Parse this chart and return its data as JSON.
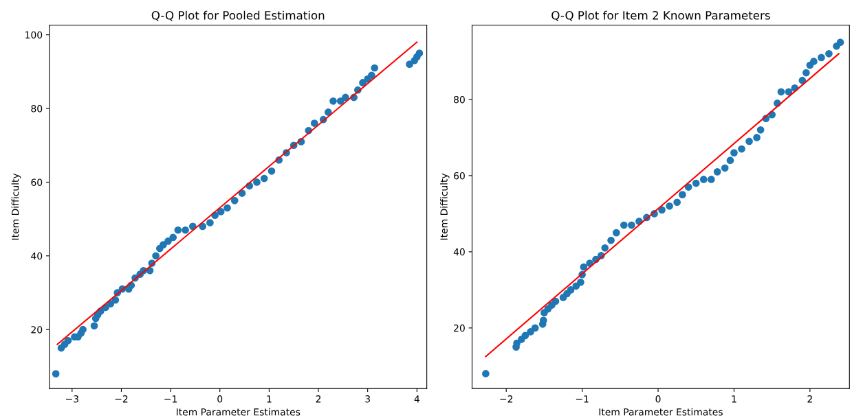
{
  "chart_data": [
    {
      "type": "scatter",
      "title": "Q-Q Plot for Pooled Estimation",
      "xlabel": "Item Parameter Estimates",
      "ylabel": "Item Difficulty",
      "xlim": [
        -3.46,
        4.2
      ],
      "ylim": [
        4.0,
        102.6
      ],
      "xticks": [
        {
          "value": -3,
          "label": "−3"
        },
        {
          "value": -2,
          "label": "−2"
        },
        {
          "value": -1,
          "label": "−1"
        },
        0,
        1,
        2,
        3,
        4
      ],
      "yticks": [
        20,
        40,
        60,
        80,
        100
      ],
      "series": [
        {
          "marker": "circle",
          "color": "#1f77b4",
          "x": [
            -3.33,
            -3.22,
            -3.15,
            -3.08,
            -2.95,
            -2.88,
            -2.82,
            -2.78,
            -2.55,
            -2.52,
            -2.48,
            -2.42,
            -2.32,
            -2.22,
            -2.12,
            -2.08,
            -1.98,
            -1.85,
            -1.8,
            -1.72,
            -1.62,
            -1.55,
            -1.42,
            -1.38,
            -1.3,
            -1.22,
            -1.15,
            -1.05,
            -0.95,
            -0.85,
            -0.7,
            -0.55,
            -0.35,
            -0.2,
            -0.1,
            0.02,
            0.15,
            0.3,
            0.45,
            0.6,
            0.75,
            0.9,
            1.05,
            1.2,
            1.35,
            1.5,
            1.65,
            1.8,
            1.92,
            2.1,
            2.2,
            2.3,
            2.45,
            2.55,
            2.72,
            2.8,
            2.9,
            3.0,
            3.08,
            3.14,
            3.85,
            3.95,
            4.0,
            4.05
          ],
          "values": [
            8,
            15,
            16,
            17,
            18,
            18,
            19,
            20,
            21,
            23,
            24,
            25,
            26,
            27,
            28,
            30,
            31,
            31,
            32,
            34,
            35,
            36,
            36,
            38,
            40,
            42,
            43,
            44,
            45,
            47,
            47,
            48,
            48,
            49,
            51,
            52,
            53,
            55,
            57,
            59,
            60,
            61,
            63,
            66,
            68,
            70,
            71,
            74,
            76,
            77,
            79,
            82,
            82,
            83,
            83,
            85,
            87,
            88,
            89,
            91,
            92,
            93,
            94,
            95
          ]
        },
        {
          "type": "line",
          "color": "#ff0000",
          "x": [
            -3.3,
            4.0
          ],
          "values": [
            16,
            98
          ]
        }
      ]
    },
    {
      "type": "scatter",
      "title": "Q-Q Plot for Item 2 Known Parameters",
      "xlabel": "Item Parameter Estimates",
      "ylabel": "Item Difficulty",
      "xlim": [
        -2.45,
        2.52
      ],
      "ylim": [
        4.1,
        99.5
      ],
      "xticks": [
        {
          "value": -2,
          "label": "−2"
        },
        {
          "value": -1,
          "label": "−1"
        },
        0,
        1,
        2
      ],
      "yticks": [
        20,
        40,
        60,
        80
      ],
      "series": [
        {
          "marker": "circle",
          "color": "#1f77b4",
          "x": [
            -2.27,
            -1.87,
            -1.86,
            -1.8,
            -1.75,
            -1.68,
            -1.62,
            -1.52,
            -1.51,
            -1.5,
            -1.45,
            -1.4,
            -1.35,
            -1.25,
            -1.2,
            -1.15,
            -1.08,
            -1.02,
            -1.0,
            -0.98,
            -0.9,
            -0.82,
            -0.75,
            -0.7,
            -0.62,
            -0.55,
            -0.45,
            -0.35,
            -0.25,
            -0.15,
            -0.05,
            0.05,
            0.15,
            0.25,
            0.32,
            0.4,
            0.5,
            0.6,
            0.7,
            0.78,
            0.88,
            0.95,
            1.0,
            1.1,
            1.2,
            1.3,
            1.35,
            1.42,
            1.5,
            1.57,
            1.62,
            1.72,
            1.8,
            1.9,
            1.95,
            2.0,
            2.05,
            2.15,
            2.25,
            2.35,
            2.4
          ],
          "values": [
            8,
            15,
            16,
            17,
            18,
            19,
            20,
            21,
            22,
            24,
            25,
            26,
            27,
            28,
            29,
            30,
            31,
            32,
            34,
            36,
            37,
            38,
            39,
            41,
            43,
            45,
            47,
            47,
            48,
            49,
            50,
            51,
            52,
            53,
            55,
            57,
            58,
            59,
            59,
            61,
            62,
            64,
            66,
            67,
            69,
            70,
            72,
            75,
            76,
            79,
            82,
            82,
            83,
            85,
            87,
            89,
            90,
            91,
            92,
            94,
            95
          ]
        },
        {
          "type": "line",
          "color": "#ff0000",
          "x": [
            -2.27,
            2.38
          ],
          "values": [
            12.5,
            92
          ]
        }
      ]
    }
  ]
}
